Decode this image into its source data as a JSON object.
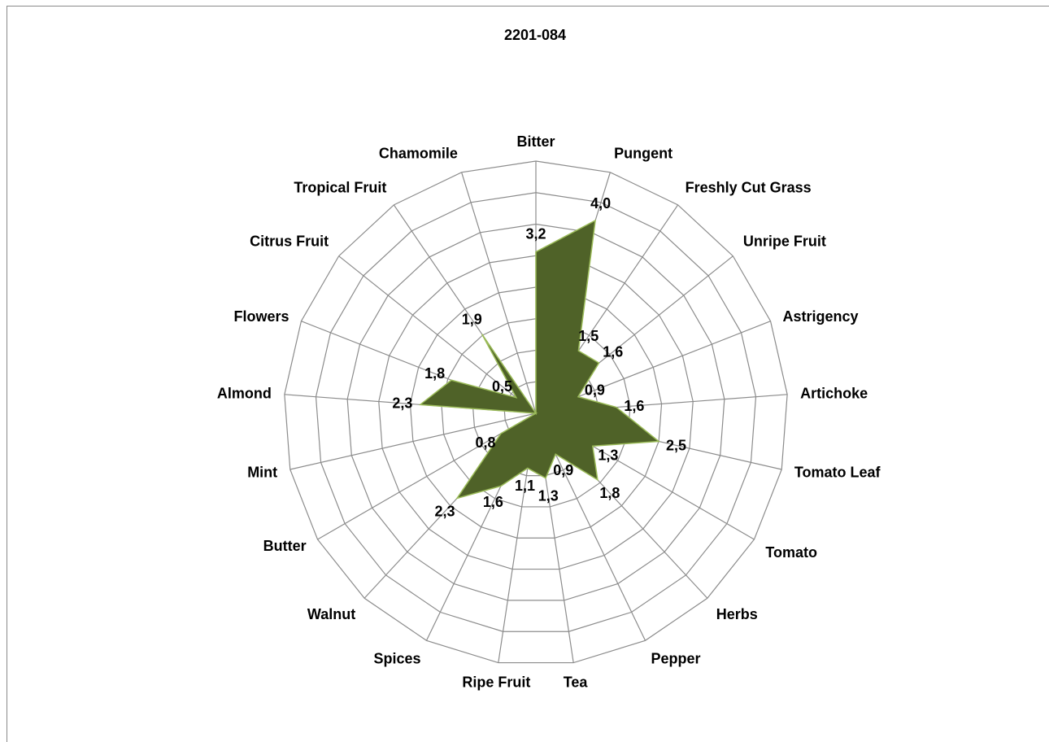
{
  "chart_data": {
    "type": "radar",
    "title": "2201-084",
    "categories": [
      "Bitter",
      "Pungent",
      "Freshly Cut Grass",
      "Unripe Fruit",
      "Astrigency",
      "Artichoke",
      "Tomato Leaf",
      "Tomato",
      "Herbs",
      "Pepper",
      "Tea",
      "Ripe Fruit",
      "Spices",
      "Walnut",
      "Butter",
      "Mint",
      "Almond",
      "Flowers",
      "Citrus Fruit",
      "Tropical Fruit",
      "Chamomile"
    ],
    "values": [
      3.2,
      4.0,
      1.5,
      1.6,
      0.9,
      1.6,
      2.5,
      1.3,
      1.8,
      0.9,
      1.3,
      1.1,
      1.6,
      2.3,
      0.8,
      0,
      2.3,
      1.8,
      0.5,
      1.9,
      0
    ],
    "value_labels": [
      "3,2",
      "4,0",
      "1,5",
      "1,6",
      "0,9",
      "1,6",
      "2,5",
      "1,3",
      "1,8",
      "0,9",
      "1,3",
      "1,1",
      "1,6",
      "2,3",
      "0,8",
      "",
      "2,3",
      "1,8",
      "0,5",
      "1,9",
      ""
    ],
    "rlim": [
      0,
      5
    ],
    "rings": 8,
    "grid": true,
    "legend": "none",
    "colors": {
      "fill": "#4f6228",
      "stroke": "#9bbb59",
      "grid": "#8c8c8c"
    }
  }
}
